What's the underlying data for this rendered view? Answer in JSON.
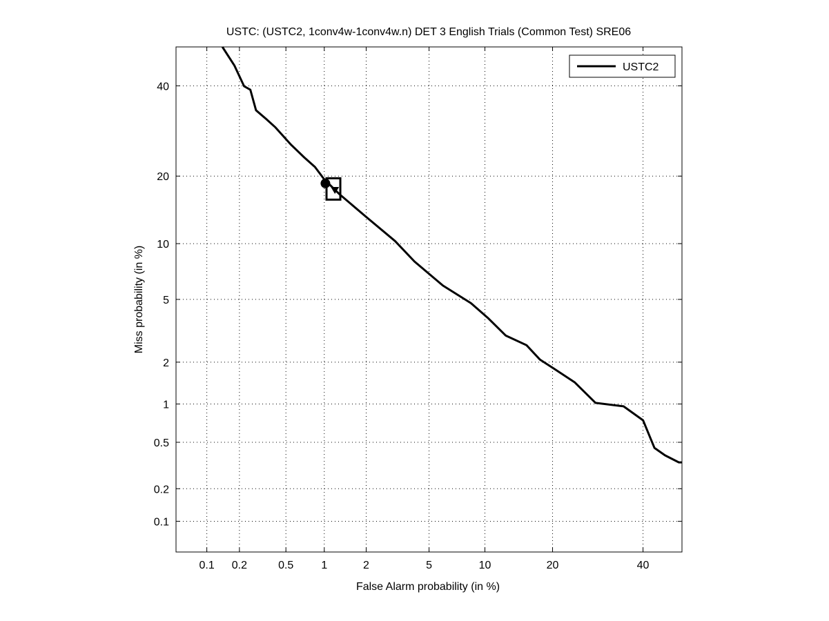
{
  "chart_data": {
    "type": "line",
    "scale": "probit (normal deviate), DET plot",
    "title": "USTC: (USTC2, 1conv4w-1conv4w.n) DET 3 English Trials (Common Test) SRE06",
    "xlabel": "False Alarm probability (in %)",
    "ylabel": "Miss probability (in %)",
    "xlim": [
      0.05,
      50
    ],
    "ylim": [
      0.05,
      50
    ],
    "xticks": [
      0.1,
      0.2,
      0.5,
      1,
      2,
      5,
      10,
      20,
      40
    ],
    "xtick_labels": [
      "0.1",
      "0.2",
      "0.5",
      "1",
      "2",
      "5",
      "10",
      "20",
      "40"
    ],
    "yticks": [
      0.1,
      0.2,
      0.5,
      1,
      2,
      5,
      10,
      20,
      40
    ],
    "ytick_labels": [
      "0.1",
      "0.2",
      "0.5",
      "1",
      "2",
      "5",
      "10",
      "20",
      "40"
    ],
    "grid": true,
    "legend_placement": "top-right",
    "series": [
      {
        "name": "USTC2",
        "color": "#000000",
        "x": [
          0.14,
          0.18,
          0.22,
          0.25,
          0.28,
          0.34,
          0.41,
          0.55,
          0.7,
          0.85,
          1.0,
          1.29,
          2.0,
          3.1,
          4.1,
          6.0,
          8.5,
          10.4,
          12.6,
          15.6,
          17.8,
          20.3,
          24.3,
          28.7,
          35.2,
          40.0,
          42.9,
          45.6,
          49.2,
          50.0
        ],
        "y": [
          50.0,
          45.2,
          39.9,
          39.0,
          34.0,
          32.0,
          30.0,
          26.2,
          23.6,
          21.7,
          19.4,
          16.9,
          13.4,
          10.3,
          8.1,
          6.0,
          4.75,
          3.85,
          3.0,
          2.6,
          2.08,
          1.8,
          1.44,
          1.02,
          0.96,
          0.75,
          0.45,
          0.39,
          0.34,
          0.34
        ]
      }
    ],
    "markers": [
      {
        "shape": "circle",
        "x": 1.02,
        "y": 18.7
      },
      {
        "shape": "square",
        "x": 1.17,
        "y": 17.8
      },
      {
        "shape": "triangle",
        "x": 1.2,
        "y": 17.6
      }
    ]
  }
}
